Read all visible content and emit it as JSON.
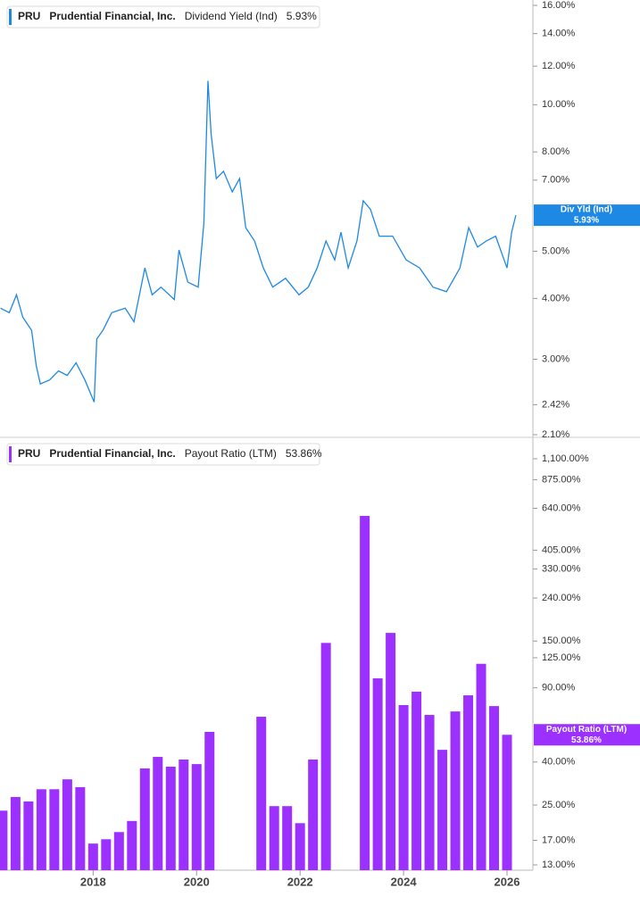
{
  "chart_data": [
    {
      "type": "line",
      "log_scale": true,
      "legend": {
        "ticker": "PRU",
        "company": "Prudential Financial, Inc.",
        "name": "Dividend Yield (Ind)",
        "value_label": "5.93%"
      },
      "flag": {
        "name": "Div Yld (Ind)",
        "value_label": "5.93%"
      },
      "x": [
        2016.21,
        2016.38,
        2016.52,
        2016.64,
        2016.81,
        2016.9,
        2016.98,
        2017.16,
        2017.33,
        2017.5,
        2017.67,
        2017.84,
        2018.02,
        2018.07,
        2018.19,
        2018.36,
        2018.62,
        2018.79,
        2019.0,
        2019.14,
        2019.31,
        2019.57,
        2019.66,
        2019.83,
        2020.03,
        2020.14,
        2020.22,
        2020.28,
        2020.38,
        2020.52,
        2020.69,
        2020.83,
        2020.95,
        2021.12,
        2021.29,
        2021.47,
        2021.72,
        2021.98,
        2022.16,
        2022.33,
        2022.5,
        2022.67,
        2022.79,
        2022.93,
        2023.1,
        2023.22,
        2023.36,
        2023.53,
        2023.79,
        2024.05,
        2024.31,
        2024.57,
        2024.83,
        2025.09,
        2025.26,
        2025.43,
        2025.6,
        2025.78,
        2026.0,
        2026.09,
        2026.17
      ],
      "series": [
        {
          "name": "Dividend Yield (Ind)",
          "color": "#1e88e5",
          "values": [
            3.82,
            3.74,
            4.07,
            3.66,
            3.44,
            2.91,
            2.67,
            2.72,
            2.84,
            2.78,
            2.95,
            2.72,
            2.45,
            3.3,
            3.44,
            3.74,
            3.82,
            3.58,
            4.62,
            4.07,
            4.22,
            3.98,
            5.03,
            4.32,
            4.22,
            5.71,
            11.2,
            8.71,
            7.05,
            7.3,
            6.62,
            7.05,
            5.59,
            5.25,
            4.62,
            4.22,
            4.4,
            4.07,
            4.22,
            4.62,
            5.25,
            4.8,
            5.47,
            4.62,
            5.25,
            6.35,
            6.1,
            5.37,
            5.37,
            4.8,
            4.62,
            4.22,
            4.13,
            4.62,
            5.59,
            5.1,
            5.25,
            5.37,
            4.62,
            5.47,
            5.93
          ]
        }
      ],
      "xlim": [
        2016.2,
        2026.5
      ],
      "ylim": [
        2.1,
        16
      ],
      "yticks": [
        {
          "value": 16,
          "label": "16.00%"
        },
        {
          "value": 14,
          "label": "14.00%"
        },
        {
          "value": 12,
          "label": "12.00%"
        },
        {
          "value": 10,
          "label": "10.00%"
        },
        {
          "value": 8,
          "label": "8.00%"
        },
        {
          "value": 7,
          "label": "7.00%"
        },
        {
          "value": 5,
          "label": "5.00%"
        },
        {
          "value": 4,
          "label": "4.00%"
        },
        {
          "value": 3,
          "label": "3.00%"
        },
        {
          "value": 2.42,
          "label": "2.42%"
        },
        {
          "value": 2.1,
          "label": "2.10%"
        }
      ]
    },
    {
      "type": "bar",
      "log_scale": true,
      "legend": {
        "ticker": "PRU",
        "company": "Prudential Financial, Inc.",
        "name": "Payout Ratio (LTM)",
        "value_label": "53.86%"
      },
      "flag": {
        "name": "Payout Ratio (LTM)",
        "value_label": "53.86%"
      },
      "x": [
        2016.25,
        2016.5,
        2016.75,
        2017.0,
        2017.25,
        2017.5,
        2017.75,
        2018.0,
        2018.25,
        2018.5,
        2018.75,
        2019.0,
        2019.25,
        2019.5,
        2019.75,
        2020.0,
        2020.25,
        2020.5,
        2020.75,
        2021.0,
        2021.25,
        2021.5,
        2021.75,
        2022.0,
        2022.25,
        2022.5,
        2022.75,
        2023.0,
        2023.25,
        2023.5,
        2023.75,
        2024.0,
        2024.25,
        2024.5,
        2024.75,
        2025.0,
        2025.25,
        2025.5,
        2025.75,
        2026.0
      ],
      "series": [
        {
          "name": "Payout Ratio (LTM)",
          "color": "#9b30ff",
          "values": [
            23.5,
            27.3,
            26.0,
            29.7,
            29.7,
            33.1,
            30.4,
            16.4,
            17.2,
            18.6,
            21.0,
            37.3,
            42.3,
            38.0,
            41.1,
            39.1,
            55.6,
            null,
            null,
            null,
            65.6,
            24.7,
            24.7,
            20.5,
            41.1,
            147,
            null,
            null,
            589,
            99.8,
            164,
            74.5,
            86.3,
            66.9,
            45.7,
            69.5,
            82.9,
            117,
            73.7,
            53.86
          ]
        }
      ],
      "xlim": [
        2016.2,
        2026.5
      ],
      "xticks": [
        2018,
        2020,
        2022,
        2024,
        2026
      ],
      "ylim": [
        12.26,
        1390
      ],
      "yticks": [
        {
          "value": 1100,
          "label": "1,100.00%"
        },
        {
          "value": 875,
          "label": "875.00%"
        },
        {
          "value": 640,
          "label": "640.00%"
        },
        {
          "value": 405,
          "label": "405.00%"
        },
        {
          "value": 330,
          "label": "330.00%"
        },
        {
          "value": 240,
          "label": "240.00%"
        },
        {
          "value": 150,
          "label": "150.00%"
        },
        {
          "value": 125,
          "label": "125.00%"
        },
        {
          "value": 90,
          "label": "90.00%"
        },
        {
          "value": 40,
          "label": "40.00%"
        },
        {
          "value": 25,
          "label": "25.00%"
        },
        {
          "value": 17,
          "label": "17.00%"
        },
        {
          "value": 13,
          "label": "13.00%"
        }
      ]
    }
  ]
}
